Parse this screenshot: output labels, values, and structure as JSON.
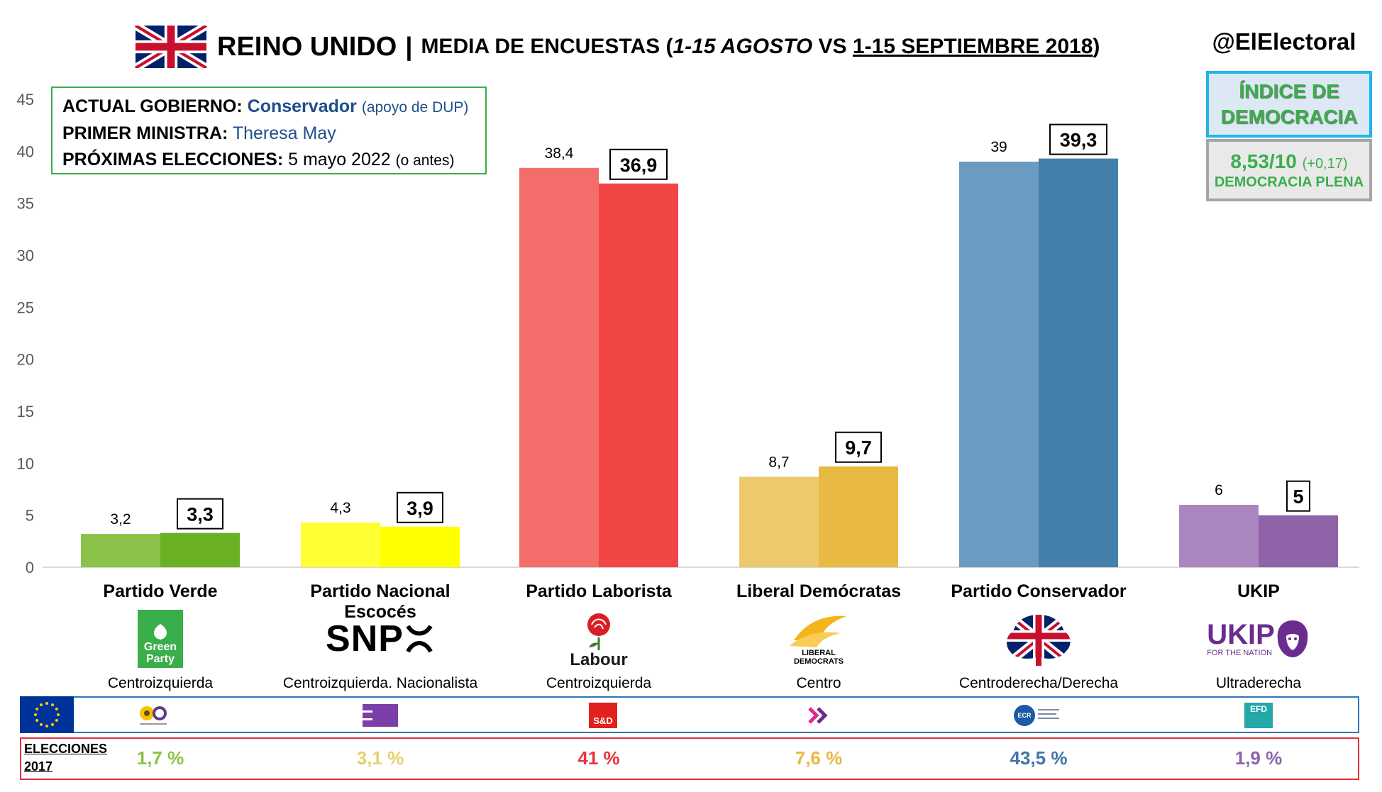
{
  "header": {
    "title_main": "REINO UNIDO",
    "title_sep": "|",
    "title_sub_prefix": "MEDIA DE ENCUESTAS (",
    "title_sub_period1": "1-15 AGOSTO",
    "title_sub_vs": " VS ",
    "title_sub_period2": "1-15 SEPTIEMBRE 2018",
    "title_sub_suffix": ")",
    "handle": "@ElElectoral"
  },
  "democracy": {
    "title_line1": "ÍNDICE DE",
    "title_line2": "DEMOCRACIA",
    "score": "8,53/10",
    "change": "(+0,17)",
    "category": "DEMOCRACIA PLENA",
    "colors": {
      "border_top": "#1fb5e8",
      "text": "#3aae4a"
    }
  },
  "info": {
    "gov_label": "ACTUAL GOBIERNO:",
    "gov_value": "Conservador",
    "gov_note": "(apoyo de DUP)",
    "pm_label": "PRIMER MINISTRA:",
    "pm_value": "Theresa May",
    "elections_label": "PRÓXIMAS ELECCIONES:",
    "elections_value": "5 mayo 2022",
    "elections_note": "(o antes)"
  },
  "chart_data": {
    "type": "bar",
    "ylim": [
      0,
      45
    ],
    "yticks": [
      0,
      5,
      10,
      15,
      20,
      25,
      30,
      35,
      40,
      45
    ],
    "grid": false,
    "categories": [
      "Partido Verde",
      "Partido Nacional Escocés",
      "Partido Laborista",
      "Liberal Demócratas",
      "Partido Conservador",
      "UKIP"
    ],
    "series": [
      {
        "values": [
          3.2,
          4.3,
          38.4,
          8.7,
          39,
          6
        ],
        "labels": [
          "3,2",
          "4,3",
          "38,4",
          "8,7",
          "39",
          "6"
        ]
      },
      {
        "values": [
          3.3,
          3.9,
          36.9,
          9.7,
          39.3,
          5
        ],
        "labels": [
          "3,3",
          "3,9",
          "36,9",
          "9,7",
          "39,3",
          "5"
        ]
      }
    ],
    "colors": [
      [
        "#8bc34a",
        "#6ab023"
      ],
      [
        "#ffff33",
        "#ffff00"
      ],
      [
        "#f36d6a",
        "#f24545"
      ],
      [
        "#ecc96b",
        "#e8b943"
      ],
      [
        "#6b9bc0",
        "#4480aa"
      ],
      [
        "#a986bf",
        "#8e63a8"
      ]
    ]
  },
  "parties": [
    {
      "name": "Partido Verde",
      "ideology": "Centroizquierda",
      "logo": "green-party-logo",
      "logo_text": [
        "Green",
        "Party"
      ],
      "eu_icon": "greens-efa-icon",
      "elections": "1,7 %",
      "color": "#8bc34a"
    },
    {
      "name": "Partido Nacional Escocés",
      "ideology": "Centroizquierda. Nacionalista",
      "logo": "snp-logo",
      "logo_text": [
        "SNP"
      ],
      "eu_icon": "greens-efa-bars-icon",
      "elections": "3,1 %",
      "color": "#e8d06a"
    },
    {
      "name": "Partido Laborista",
      "ideology": "Centroizquierda",
      "logo": "labour-rose-logo",
      "logo_text": [
        "Labour"
      ],
      "eu_icon": "s-and-d-icon",
      "eu_icon_text": "S&D",
      "elections": "41 %",
      "color": "#e8353b"
    },
    {
      "name": "Liberal Demócratas",
      "ideology": "Centro",
      "logo": "lib-dem-bird-logo",
      "logo_text": [
        "LIBERAL",
        "DEMOCRATS"
      ],
      "eu_icon": "alde-chevron-icon",
      "elections": "7,6 %",
      "color": "#e8b943"
    },
    {
      "name": "Partido Conservador",
      "ideology": "Centroderecha/Derecha",
      "logo": "conservative-tree-logo",
      "logo_text": [],
      "eu_icon": "ecr-icon",
      "eu_icon_text": "ECR",
      "elections": "43,5 %",
      "color": "#3e76a8"
    },
    {
      "name": "UKIP",
      "ideology": "Ultraderecha",
      "logo": "ukip-lion-logo",
      "logo_text": [
        "UKIP",
        "FOR THE NATION"
      ],
      "eu_icon": "efdd-icon",
      "eu_icon_text": "EFD",
      "elections": "1,9 %",
      "color": "#8e63a8"
    }
  ],
  "eu_row": {
    "flag": "eu-flag-icon"
  },
  "elections_row": {
    "label_line1": "ELECCIONES",
    "label_line2": "2017"
  }
}
